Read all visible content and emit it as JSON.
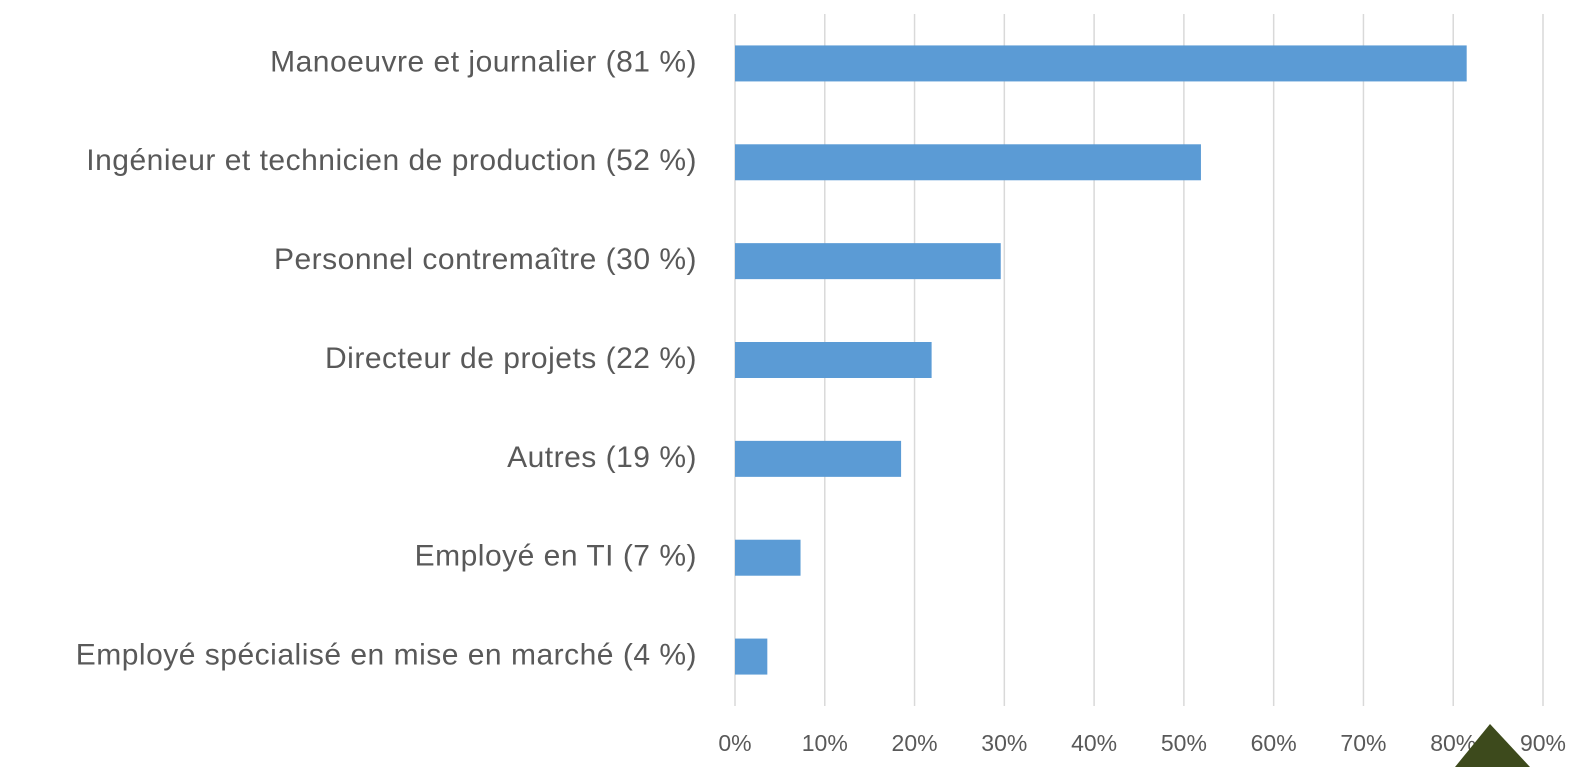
{
  "chart_data": {
    "type": "barh",
    "categories": [
      "Manoeuvre et journalier (81 %)",
      "Ingénieur et technicien de production (52 %)",
      "Personnel contremaître (30 %)",
      "Directeur de projets (22 %)",
      "Autres (19 %)",
      "Employé en TI (7 %)",
      "Employé spécialisé en mise en marché (4 %)"
    ],
    "values": [
      81.5,
      51.9,
      29.6,
      21.9,
      18.5,
      7.3,
      3.6
    ],
    "color": "#5b9bd5",
    "xlim": [
      0,
      90
    ],
    "xticks": [
      {
        "value": 0,
        "label": "0%"
      },
      {
        "value": 10,
        "label": "10%"
      },
      {
        "value": 20,
        "label": "20%"
      },
      {
        "value": 30,
        "label": "30%"
      },
      {
        "value": 40,
        "label": "40%"
      },
      {
        "value": 50,
        "label": "50%"
      },
      {
        "value": 60,
        "label": "60%"
      },
      {
        "value": 70,
        "label": "70%"
      },
      {
        "value": 80,
        "label": "80%"
      },
      {
        "value": 90,
        "label": "90%"
      }
    ],
    "grid": true
  }
}
